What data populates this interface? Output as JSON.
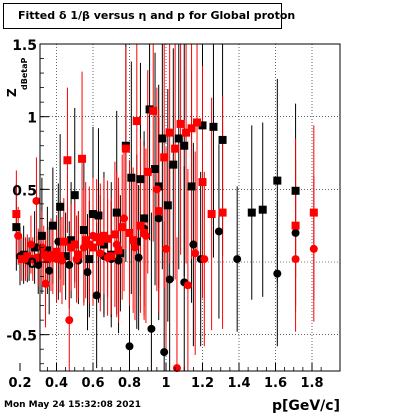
{
  "title": "Fitted δ 1/β versus η and p for Global proton",
  "timestamp": "Mon May 24 15:32:08 2021",
  "colors": {
    "black_series": "#000000",
    "red_series": "#ff0000",
    "frame": "#000000",
    "grid": "#000000"
  },
  "chart_data": {
    "type": "scatter",
    "title": "Fitted δ 1/β versus η and p for Global proton",
    "xlabel": "p[GeV/c]",
    "ylabel": "Z dBetaP",
    "xlim": [
      0.15,
      1.9
    ],
    "ylim": [
      -0.75,
      1.5
    ],
    "x_ticks": [
      "0.2",
      "0.4",
      "0.6",
      "0.8",
      "1",
      "1.2",
      "1.4",
      "1.6",
      "1.8"
    ],
    "y_ticks": [
      "-0.5",
      "0",
      "0.5",
      "1",
      "1.5"
    ],
    "grid": true,
    "series": [
      {
        "marker": "square",
        "color": "#000000",
        "points": [
          {
            "x": 0.18,
            "y": 0.24,
            "e": 0.3
          },
          {
            "x": 0.22,
            "y": 0.05,
            "e": 0.2
          },
          {
            "x": 0.25,
            "y": 0.02,
            "e": 0.15
          },
          {
            "x": 0.28,
            "y": 0.1,
            "e": 0.25
          },
          {
            "x": 0.32,
            "y": 0.18,
            "e": 0.4
          },
          {
            "x": 0.35,
            "y": 0.08,
            "e": 0.3
          },
          {
            "x": 0.38,
            "y": 0.25,
            "e": 0.4
          },
          {
            "x": 0.42,
            "y": 0.38,
            "e": 0.5
          },
          {
            "x": 0.45,
            "y": 0.04,
            "e": 0.3
          },
          {
            "x": 0.48,
            "y": 0.15,
            "e": 0.4
          },
          {
            "x": 0.5,
            "y": 0.46,
            "e": 0.6
          },
          {
            "x": 0.52,
            "y": 0.05,
            "e": 0.3
          },
          {
            "x": 0.55,
            "y": 0.22,
            "e": 0.5
          },
          {
            "x": 0.58,
            "y": 0.02,
            "e": 0.4
          },
          {
            "x": 0.6,
            "y": 0.33,
            "e": 0.6
          },
          {
            "x": 0.63,
            "y": 0.32,
            "e": 0.6
          },
          {
            "x": 0.66,
            "y": 0.12,
            "e": 0.5
          },
          {
            "x": 0.7,
            "y": 0.05,
            "e": 0.5
          },
          {
            "x": 0.73,
            "y": 0.34,
            "e": 0.7
          },
          {
            "x": 0.75,
            "y": 0.06,
            "e": 0.4
          },
          {
            "x": 0.78,
            "y": 0.8,
            "e": 0.8
          },
          {
            "x": 0.81,
            "y": 0.58,
            "e": 0.8
          },
          {
            "x": 0.84,
            "y": 0.14,
            "e": 0.6
          },
          {
            "x": 0.86,
            "y": 0.57,
            "e": 0.8
          },
          {
            "x": 0.88,
            "y": 0.3,
            "e": 0.6
          },
          {
            "x": 0.91,
            "y": 1.05,
            "e": 0.9
          },
          {
            "x": 0.94,
            "y": 0.64,
            "e": 0.8
          },
          {
            "x": 0.96,
            "y": 0.52,
            "e": 0.7
          },
          {
            "x": 0.98,
            "y": 0.85,
            "e": 0.9
          },
          {
            "x": 1.01,
            "y": 0.39,
            "e": 0.8
          },
          {
            "x": 1.04,
            "y": 0.67,
            "e": 0.8
          },
          {
            "x": 1.07,
            "y": 0.85,
            "e": 0.9
          },
          {
            "x": 1.1,
            "y": 0.8,
            "e": 0.9
          },
          {
            "x": 1.14,
            "y": 0.52,
            "e": 0.8
          },
          {
            "x": 1.2,
            "y": 0.94,
            "e": 0.9
          },
          {
            "x": 1.26,
            "y": 0.93,
            "e": 0.9
          },
          {
            "x": 1.31,
            "y": 0.84,
            "e": 0.8
          },
          {
            "x": 1.47,
            "y": 0.34,
            "e": 0.6
          },
          {
            "x": 1.53,
            "y": 0.36,
            "e": 0.6
          },
          {
            "x": 1.61,
            "y": 0.56,
            "e": 0.7
          },
          {
            "x": 1.71,
            "y": 0.49,
            "e": 0.6
          }
        ]
      },
      {
        "marker": "circle",
        "color": "#000000",
        "points": [
          {
            "x": 0.2,
            "y": 0.04,
            "e": 0.2
          },
          {
            "x": 0.24,
            "y": 0.01,
            "e": 0.15
          },
          {
            "x": 0.3,
            "y": -0.02,
            "e": 0.2
          },
          {
            "x": 0.36,
            "y": -0.06,
            "e": 0.3
          },
          {
            "x": 0.41,
            "y": 0.14,
            "e": 0.4
          },
          {
            "x": 0.47,
            "y": -0.02,
            "e": 0.3
          },
          {
            "x": 0.52,
            "y": 0.01,
            "e": 0.3
          },
          {
            "x": 0.57,
            "y": -0.07,
            "e": 0.4
          },
          {
            "x": 0.62,
            "y": -0.23,
            "e": 0.5
          },
          {
            "x": 0.66,
            "y": 0.04,
            "e": 0.4
          },
          {
            "x": 0.7,
            "y": 0.02,
            "e": 0.4
          },
          {
            "x": 0.74,
            "y": 0.01,
            "e": 0.5
          },
          {
            "x": 0.8,
            "y": -0.58,
            "e": 0.7
          },
          {
            "x": 0.85,
            "y": 0.03,
            "e": 0.5
          },
          {
            "x": 0.88,
            "y": 0.23,
            "e": 0.6
          },
          {
            "x": 0.92,
            "y": -0.46,
            "e": 0.8
          },
          {
            "x": 0.96,
            "y": 0.3,
            "e": 0.7
          },
          {
            "x": 0.99,
            "y": -0.62,
            "e": 0.9
          },
          {
            "x": 1.02,
            "y": -0.12,
            "e": 0.8
          },
          {
            "x": 1.1,
            "y": -0.14,
            "e": 0.8
          },
          {
            "x": 1.15,
            "y": 0.12,
            "e": 0.7
          },
          {
            "x": 1.19,
            "y": 0.02,
            "e": 0.6
          },
          {
            "x": 1.29,
            "y": 0.21,
            "e": 0.6
          },
          {
            "x": 1.39,
            "y": 0.02,
            "e": 0.5
          },
          {
            "x": 1.61,
            "y": -0.08,
            "e": 0.5
          },
          {
            "x": 1.71,
            "y": 0.2,
            "e": 0.5
          }
        ]
      },
      {
        "marker": "square",
        "color": "#ff0000",
        "points": [
          {
            "x": 0.18,
            "y": 0.33,
            "e": 0.3
          },
          {
            "x": 0.21,
            "y": 0.02,
            "e": 0.15
          },
          {
            "x": 0.24,
            "y": 0.04,
            "e": 0.15
          },
          {
            "x": 0.27,
            "y": 0.02,
            "e": 0.15
          },
          {
            "x": 0.3,
            "y": 0.03,
            "e": 0.2
          },
          {
            "x": 0.33,
            "y": 0.05,
            "e": 0.2
          },
          {
            "x": 0.35,
            "y": 0.02,
            "e": 0.2
          },
          {
            "x": 0.38,
            "y": 0.03,
            "e": 0.25
          },
          {
            "x": 0.4,
            "y": 0.07,
            "e": 0.25
          },
          {
            "x": 0.42,
            "y": 0.04,
            "e": 0.25
          },
          {
            "x": 0.44,
            "y": 0.14,
            "e": 0.3
          },
          {
            "x": 0.46,
            "y": 0.7,
            "e": 0.5
          },
          {
            "x": 0.48,
            "y": 0.1,
            "e": 0.3
          },
          {
            "x": 0.5,
            "y": 0.12,
            "e": 0.3
          },
          {
            "x": 0.52,
            "y": 0.05,
            "e": 0.3
          },
          {
            "x": 0.54,
            "y": 0.71,
            "e": 0.6
          },
          {
            "x": 0.56,
            "y": 0.15,
            "e": 0.4
          },
          {
            "x": 0.58,
            "y": 0.12,
            "e": 0.4
          },
          {
            "x": 0.6,
            "y": 0.1,
            "e": 0.4
          },
          {
            "x": 0.62,
            "y": 0.17,
            "e": 0.4
          },
          {
            "x": 0.64,
            "y": 0.14,
            "e": 0.4
          },
          {
            "x": 0.66,
            "y": 0.18,
            "e": 0.4
          },
          {
            "x": 0.68,
            "y": 0.16,
            "e": 0.4
          },
          {
            "x": 0.7,
            "y": 0.04,
            "e": 0.4
          },
          {
            "x": 0.72,
            "y": 0.19,
            "e": 0.5
          },
          {
            "x": 0.74,
            "y": 0.08,
            "e": 0.5
          },
          {
            "x": 0.76,
            "y": 0.24,
            "e": 0.5
          },
          {
            "x": 0.78,
            "y": 0.78,
            "e": 0.7
          },
          {
            "x": 0.8,
            "y": 0.2,
            "e": 0.5
          },
          {
            "x": 0.82,
            "y": 0.15,
            "e": 0.5
          },
          {
            "x": 0.84,
            "y": 0.97,
            "e": 0.8
          },
          {
            "x": 0.86,
            "y": 0.25,
            "e": 0.6
          },
          {
            "x": 0.88,
            "y": 0.2,
            "e": 0.6
          },
          {
            "x": 0.9,
            "y": 0.62,
            "e": 0.7
          },
          {
            "x": 0.93,
            "y": 1.04,
            "e": 0.9
          },
          {
            "x": 0.96,
            "y": 0.35,
            "e": 0.7
          },
          {
            "x": 0.99,
            "y": 0.72,
            "e": 0.9
          },
          {
            "x": 1.02,
            "y": 0.89,
            "e": 0.9
          },
          {
            "x": 1.05,
            "y": 0.78,
            "e": 0.9
          },
          {
            "x": 1.08,
            "y": 0.95,
            "e": 0.9
          },
          {
            "x": 1.11,
            "y": 0.89,
            "e": 0.9
          },
          {
            "x": 1.14,
            "y": 0.92,
            "e": 0.9
          },
          {
            "x": 1.17,
            "y": 0.96,
            "e": 0.9
          },
          {
            "x": 1.2,
            "y": 0.55,
            "e": 0.8
          },
          {
            "x": 1.25,
            "y": 0.33,
            "e": 0.8
          },
          {
            "x": 1.31,
            "y": 0.34,
            "e": 0.8
          },
          {
            "x": 1.71,
            "y": 0.25,
            "e": 0.6
          },
          {
            "x": 1.81,
            "y": 0.34,
            "e": 0.6
          }
        ]
      },
      {
        "marker": "circle",
        "color": "#ff0000",
        "points": [
          {
            "x": 0.19,
            "y": 0.18,
            "e": 0.2
          },
          {
            "x": 0.23,
            "y": 0.02,
            "e": 0.15
          },
          {
            "x": 0.26,
            "y": 0.12,
            "e": 0.2
          },
          {
            "x": 0.29,
            "y": 0.42,
            "e": 0.3
          },
          {
            "x": 0.32,
            "y": 0.1,
            "e": 0.25
          },
          {
            "x": 0.34,
            "y": -0.15,
            "e": 0.3
          },
          {
            "x": 0.37,
            "y": 0.05,
            "e": 0.25
          },
          {
            "x": 0.4,
            "y": 0.02,
            "e": 0.3
          },
          {
            "x": 0.43,
            "y": 0.01,
            "e": 0.3
          },
          {
            "x": 0.47,
            "y": -0.4,
            "e": 0.5
          },
          {
            "x": 0.51,
            "y": 0.02,
            "e": 0.3
          },
          {
            "x": 0.55,
            "y": 0.1,
            "e": 0.4
          },
          {
            "x": 0.6,
            "y": 0.18,
            "e": 0.4
          },
          {
            "x": 0.64,
            "y": 0.06,
            "e": 0.4
          },
          {
            "x": 0.68,
            "y": 0.03,
            "e": 0.4
          },
          {
            "x": 0.73,
            "y": 0.12,
            "e": 0.5
          },
          {
            "x": 0.77,
            "y": 0.3,
            "e": 0.5
          },
          {
            "x": 0.83,
            "y": 0.1,
            "e": 0.5
          },
          {
            "x": 0.89,
            "y": 0.18,
            "e": 0.6
          },
          {
            "x": 0.95,
            "y": 0.5,
            "e": 0.7
          },
          {
            "x": 1.0,
            "y": 0.09,
            "e": 0.7
          },
          {
            "x": 1.06,
            "y": -0.73,
            "e": 0.9
          },
          {
            "x": 1.12,
            "y": -0.16,
            "e": 0.8
          },
          {
            "x": 1.16,
            "y": 0.06,
            "e": 0.7
          },
          {
            "x": 1.21,
            "y": 0.02,
            "e": 0.6
          },
          {
            "x": 1.71,
            "y": 0.02,
            "e": 0.5
          },
          {
            "x": 1.81,
            "y": 0.09,
            "e": 0.5
          }
        ]
      }
    ]
  }
}
